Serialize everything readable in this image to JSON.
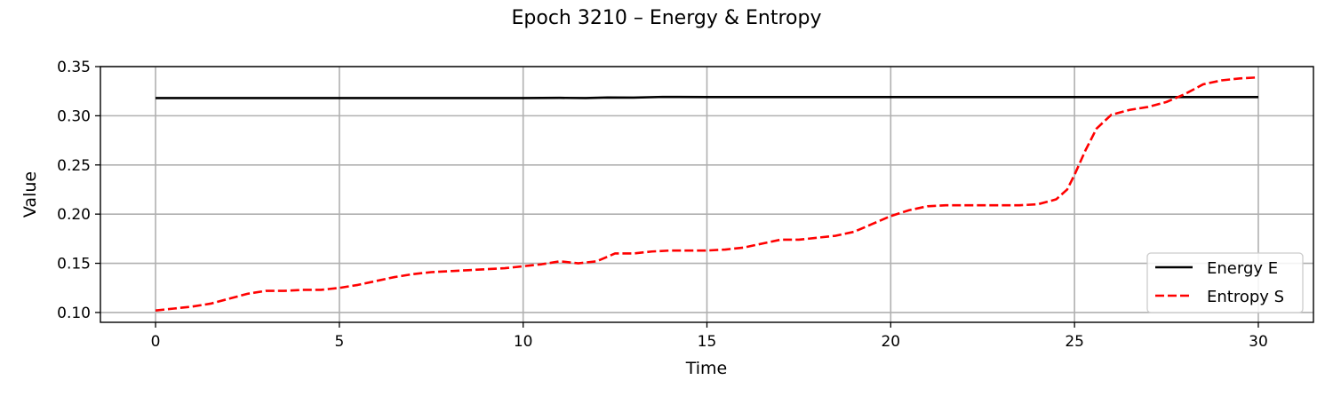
{
  "chart_data": {
    "type": "line",
    "title": "Epoch 3210 – Energy & Entropy",
    "xlabel": "Time",
    "ylabel": "Value",
    "xlim": [
      -1.5,
      31.5
    ],
    "ylim": [
      0.09,
      0.35
    ],
    "xticks": [
      0,
      5,
      10,
      15,
      20,
      25,
      30
    ],
    "yticks": [
      0.1,
      0.15,
      0.2,
      0.25,
      0.3,
      0.35
    ],
    "xtick_labels": [
      "0",
      "5",
      "10",
      "15",
      "20",
      "25",
      "30"
    ],
    "ytick_labels": [
      "0.10",
      "0.15",
      "0.20",
      "0.25",
      "0.30",
      "0.35"
    ],
    "grid": true,
    "legend_position": "lower-right",
    "series": [
      {
        "name": "Energy E",
        "color": "#000000",
        "style": "solid",
        "x": [
          0,
          2,
          4,
          6,
          8,
          10,
          11,
          11.7,
          12.3,
          13,
          13.8,
          15,
          17,
          20,
          22,
          24,
          26,
          28,
          30
        ],
        "y": [
          0.318,
          0.318,
          0.318,
          0.318,
          0.318,
          0.318,
          0.3182,
          0.318,
          0.3186,
          0.3185,
          0.3192,
          0.319,
          0.319,
          0.319,
          0.319,
          0.319,
          0.319,
          0.319,
          0.319
        ]
      },
      {
        "name": "Entropy S",
        "color": "#ff0000",
        "style": "dashed",
        "x": [
          0,
          0.5,
          1,
          1.5,
          2,
          2.5,
          3,
          3.5,
          4,
          4.5,
          5,
          5.5,
          6,
          6.5,
          7,
          7.5,
          8,
          8.5,
          9,
          9.5,
          10,
          10.5,
          11,
          11.5,
          12,
          12.5,
          13,
          13.5,
          14,
          14.5,
          15,
          15.5,
          16,
          16.5,
          17,
          17.5,
          18,
          18.5,
          19,
          19.5,
          20,
          20.5,
          21,
          21.5,
          22,
          22.5,
          23,
          23.5,
          24,
          24.5,
          24.8,
          25,
          25.3,
          25.6,
          26,
          26.5,
          27,
          27.5,
          28,
          28.5,
          29,
          29.5,
          30
        ],
        "y": [
          0.102,
          0.104,
          0.106,
          0.109,
          0.114,
          0.119,
          0.122,
          0.122,
          0.123,
          0.123,
          0.125,
          0.128,
          0.132,
          0.136,
          0.139,
          0.141,
          0.142,
          0.143,
          0.144,
          0.145,
          0.147,
          0.149,
          0.152,
          0.15,
          0.152,
          0.16,
          0.16,
          0.162,
          0.163,
          0.163,
          0.163,
          0.164,
          0.166,
          0.17,
          0.174,
          0.174,
          0.176,
          0.178,
          0.182,
          0.19,
          0.198,
          0.204,
          0.208,
          0.209,
          0.209,
          0.209,
          0.209,
          0.209,
          0.21,
          0.215,
          0.225,
          0.24,
          0.265,
          0.287,
          0.301,
          0.306,
          0.309,
          0.314,
          0.322,
          0.332,
          0.336,
          0.338,
          0.339
        ]
      }
    ]
  }
}
